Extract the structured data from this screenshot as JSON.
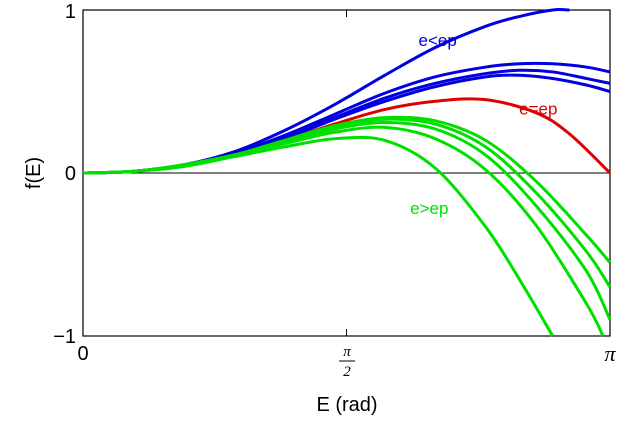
{
  "chart_data": {
    "type": "line",
    "xlabel": "E (rad)",
    "ylabel": "f(E)",
    "xlim": [
      0,
      3.14159
    ],
    "ylim": [
      -1,
      1
    ],
    "xticks": [
      {
        "value": 0,
        "label": "0"
      },
      {
        "value": 1.5708,
        "label_num": "π",
        "label_den": "2"
      },
      {
        "value": 3.14159,
        "label": "π"
      }
    ],
    "yticks": [
      {
        "value": -1,
        "label": "−1"
      },
      {
        "value": 0,
        "label": "0"
      },
      {
        "value": 1,
        "label": "1"
      }
    ],
    "zero_line": true,
    "grid": false,
    "colors": {
      "low": "#0000e0",
      "critical": "#e00000",
      "high": "#00e000"
    },
    "annotations": [
      {
        "text": "e<ep",
        "color": "#0000e0",
        "x": 2.0,
        "y": 0.78
      },
      {
        "text": "e=ep",
        "color": "#e00000",
        "x": 2.6,
        "y": 0.36
      },
      {
        "text": "e>ep",
        "color": "#00e000",
        "x": 1.95,
        "y": -0.25
      }
    ],
    "series": [
      {
        "group": "e<ep",
        "color": "#0000e0",
        "x": [
          0,
          0.3,
          0.6,
          0.9,
          1.2,
          1.5,
          1.8,
          2.1,
          2.4,
          2.6,
          2.8,
          2.9
        ],
        "y": [
          0,
          0.01,
          0.05,
          0.13,
          0.26,
          0.42,
          0.6,
          0.77,
          0.9,
          0.96,
          1.0,
          1.0
        ]
      },
      {
        "group": "e<ep",
        "color": "#0000e0",
        "x": [
          0,
          0.3,
          0.6,
          0.9,
          1.2,
          1.5,
          1.8,
          2.1,
          2.4,
          2.6,
          2.8,
          3.0,
          3.14159
        ],
        "y": [
          0,
          0.01,
          0.05,
          0.12,
          0.23,
          0.36,
          0.49,
          0.59,
          0.65,
          0.67,
          0.67,
          0.65,
          0.62
        ]
      },
      {
        "group": "e<ep",
        "color": "#0000e0",
        "x": [
          0,
          0.3,
          0.6,
          0.9,
          1.2,
          1.5,
          1.8,
          2.1,
          2.4,
          2.6,
          2.8,
          3.0,
          3.14159
        ],
        "y": [
          0,
          0.01,
          0.05,
          0.12,
          0.22,
          0.34,
          0.46,
          0.55,
          0.61,
          0.63,
          0.62,
          0.58,
          0.55
        ]
      },
      {
        "group": "e<ep",
        "color": "#0000e0",
        "x": [
          0,
          0.3,
          0.6,
          0.9,
          1.2,
          1.5,
          1.8,
          2.1,
          2.4,
          2.6,
          2.8,
          3.0,
          3.14159
        ],
        "y": [
          0,
          0.01,
          0.05,
          0.12,
          0.21,
          0.33,
          0.44,
          0.53,
          0.59,
          0.6,
          0.58,
          0.54,
          0.5
        ]
      },
      {
        "group": "e=ep",
        "color": "#e00000",
        "x": [
          0,
          0.3,
          0.6,
          0.9,
          1.2,
          1.5,
          1.8,
          2.1,
          2.4,
          2.7,
          2.9,
          3.14159
        ],
        "y": [
          0,
          0.01,
          0.05,
          0.11,
          0.2,
          0.3,
          0.39,
          0.44,
          0.45,
          0.37,
          0.24,
          0.0
        ]
      },
      {
        "group": "e>ep",
        "color": "#00e000",
        "x": [
          0,
          0.3,
          0.6,
          0.9,
          1.2,
          1.5,
          1.8,
          2.1,
          2.4,
          2.7,
          3.0,
          3.14159
        ],
        "y": [
          0,
          0.01,
          0.05,
          0.11,
          0.2,
          0.29,
          0.34,
          0.32,
          0.2,
          -0.05,
          -0.38,
          -0.55
        ]
      },
      {
        "group": "e>ep",
        "color": "#00e000",
        "x": [
          0,
          0.3,
          0.6,
          0.9,
          1.2,
          1.5,
          1.8,
          2.1,
          2.4,
          2.7,
          3.0,
          3.14159
        ],
        "y": [
          0,
          0.01,
          0.05,
          0.11,
          0.19,
          0.28,
          0.33,
          0.3,
          0.16,
          -0.12,
          -0.48,
          -0.7
        ]
      },
      {
        "group": "e>ep",
        "color": "#00e000",
        "x": [
          0,
          0.3,
          0.6,
          0.9,
          1.2,
          1.5,
          1.8,
          2.1,
          2.4,
          2.7,
          3.0,
          3.14159
        ],
        "y": [
          0,
          0.01,
          0.05,
          0.11,
          0.19,
          0.27,
          0.31,
          0.27,
          0.11,
          -0.2,
          -0.6,
          -0.9
        ]
      },
      {
        "group": "e>ep",
        "color": "#00e000",
        "x": [
          0,
          0.3,
          0.6,
          0.9,
          1.2,
          1.5,
          1.8,
          2.1,
          2.4,
          2.7,
          3.0,
          3.1
        ],
        "y": [
          0,
          0.01,
          0.05,
          0.11,
          0.18,
          0.25,
          0.28,
          0.21,
          0.02,
          -0.32,
          -0.8,
          -1.0
        ]
      },
      {
        "group": "e>ep",
        "color": "#00e000",
        "x": [
          0,
          0.3,
          0.6,
          0.9,
          1.2,
          1.5,
          1.8,
          2.1,
          2.4,
          2.6,
          2.8
        ],
        "y": [
          0,
          0.01,
          0.04,
          0.1,
          0.16,
          0.21,
          0.2,
          0.03,
          -0.33,
          -0.65,
          -1.0
        ]
      }
    ]
  }
}
